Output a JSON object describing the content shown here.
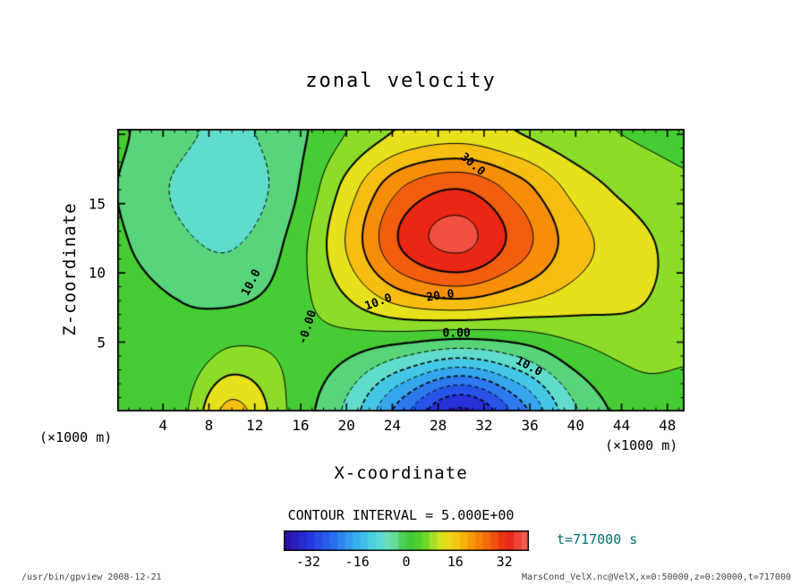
{
  "header": {
    "title": "zonal velocity"
  },
  "axes": {
    "x": {
      "label": "X-coordinate",
      "unit": "(×1000 m)",
      "min": 0,
      "max": 49.5,
      "major_ticks": [
        4,
        8,
        12,
        16,
        20,
        24,
        28,
        32,
        36,
        40,
        44,
        48
      ],
      "minor_step": 1
    },
    "z": {
      "label": "Z-coordinate",
      "unit": "(×1000 m)",
      "min": 0,
      "max": 20.4,
      "major_ticks": [
        5,
        10,
        15
      ],
      "minor_step": 1
    }
  },
  "colorbar": {
    "min": -40,
    "max": 40,
    "cell_step": 2.5,
    "tick_values": [
      -32,
      -16,
      0,
      16,
      32
    ],
    "tick_labels": [
      "-32",
      "-16",
      "0",
      "16",
      "32"
    ]
  },
  "captions": {
    "contour_interval": "CONTOUR INTERVAL = 5.000E+00",
    "time": "t=717000 s",
    "footer_left": "/usr/bin/gpview  2008-12-21",
    "footer_right": "MarsCond_VelX.nc@VelX,x=0:50000,z=0:20000,t=717000"
  },
  "colors": {
    "time_label": "#007070",
    "footer": "#444444",
    "frame": "#000000",
    "background": "#ffffff"
  },
  "chart_data": {
    "type": "heatmap",
    "title": "zonal velocity",
    "xlabel": "X-coordinate (×1000 m)",
    "ylabel": "Z-coordinate (×1000 m)",
    "x_range_m": "0:50000",
    "z_range_m": "0:20000",
    "time_s": 717000,
    "contour_interval": 5,
    "contour_levels": [
      -35,
      -30,
      -25,
      -20,
      -15,
      -10,
      -5,
      0,
      5,
      10,
      15,
      20,
      25,
      30,
      35
    ],
    "line_style": {
      "negative": "dashed",
      "zero_and_positive": "solid",
      "thick_every": 10
    },
    "x": [
      0,
      5,
      10,
      15,
      20,
      25,
      30,
      35,
      40,
      45,
      50
    ],
    "z": [
      0,
      4,
      8,
      12,
      16,
      20
    ],
    "values": [
      [
        2.7,
        1.9,
        16.5,
        4.6,
        -6.1,
        -23.2,
        -36.0,
        -23.0,
        -5.6,
        2.3,
        3.5
      ],
      [
        2.4,
        0.7,
        6.3,
        4.1,
        0.6,
        -4.7,
        -8.8,
        -4.6,
        2.6,
        6.0,
        5.4
      ],
      [
        2.0,
        0.1,
        -0.7,
        2.5,
        9.5,
        17.0,
        19.4,
        15.9,
        12.4,
        10.7,
        7.8
      ],
      [
        0.7,
        -3.4,
        -5.4,
        1.0,
        15.2,
        30.8,
        36.1,
        27.6,
        17.2,
        11.9,
        7.9
      ],
      [
        0.0,
        -5.4,
        -8.3,
        -1.8,
        11.9,
        25.5,
        30.0,
        22.7,
        13.3,
        8.4,
        5.7
      ],
      [
        0.7,
        -3.5,
        -6.0,
        -2.2,
        5.1,
        11.1,
        12.9,
        10.2,
        6.6,
        4.7,
        3.8
      ]
    ],
    "extrema": {
      "max": {
        "value": 36,
        "x": 29,
        "z": 13
      },
      "min": {
        "value": -36,
        "x": 30,
        "z": 0
      }
    },
    "contour_labels": [
      {
        "text": "30.0",
        "x": 31.0,
        "z": 17.8,
        "rot": 40
      },
      {
        "text": "10.0",
        "x": 11.7,
        "z": 9.3,
        "rot": -63
      },
      {
        "text": "-0.00",
        "x": 16.6,
        "z": 6.1,
        "rot": -72
      },
      {
        "text": "10.0",
        "x": 22.8,
        "z": 7.9,
        "rot": -20
      },
      {
        "text": "20.0",
        "x": 28.2,
        "z": 8.3,
        "rot": -8
      },
      {
        "text": "0.00",
        "x": 29.6,
        "z": 5.6,
        "rot": 0
      },
      {
        "text": "10.0",
        "x": 35.9,
        "z": 3.2,
        "rot": 28
      }
    ],
    "colormap_stops": [
      [
        -40,
        "#2b0b9e"
      ],
      [
        -32,
        "#2633de"
      ],
      [
        -24,
        "#2a6cf0"
      ],
      [
        -16,
        "#38b2ec"
      ],
      [
        -10,
        "#4cd6e2"
      ],
      [
        -5,
        "#72e2b4"
      ],
      [
        0,
        "#3cc83c"
      ],
      [
        5,
        "#52d22c"
      ],
      [
        8,
        "#96df28"
      ],
      [
        12,
        "#e4e41c"
      ],
      [
        17,
        "#f6c312"
      ],
      [
        22,
        "#f79307"
      ],
      [
        28,
        "#f2590f"
      ],
      [
        33,
        "#e92112"
      ],
      [
        40,
        "#f56a5a"
      ]
    ]
  }
}
